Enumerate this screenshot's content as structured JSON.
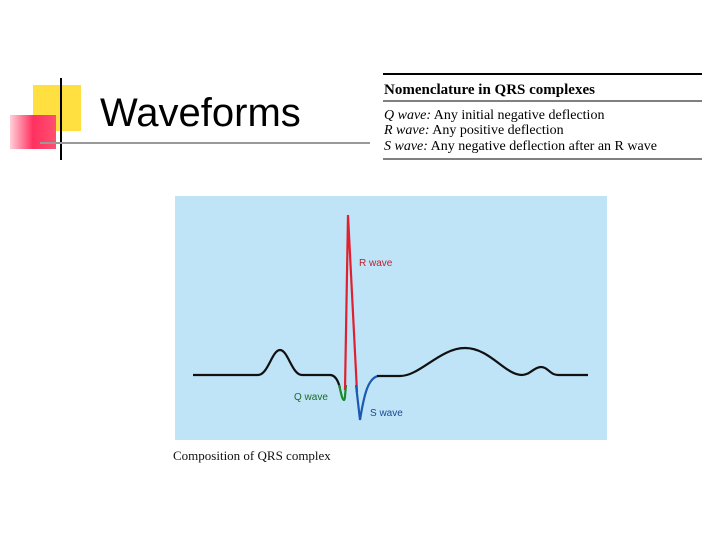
{
  "header": {
    "title": "Waveforms"
  },
  "table": {
    "title": "Nomenclature in QRS complexes",
    "rows": [
      [
        "Q wave:",
        "Any initial negative deflection"
      ],
      [
        "R wave:",
        "Any positive deflection"
      ],
      [
        "S wave:",
        "Any negative deflection after an R wave"
      ]
    ]
  },
  "figure": {
    "labels": [
      "R wave",
      "Q wave",
      "S wave"
    ],
    "caption": "Composition of QRS complex"
  }
}
